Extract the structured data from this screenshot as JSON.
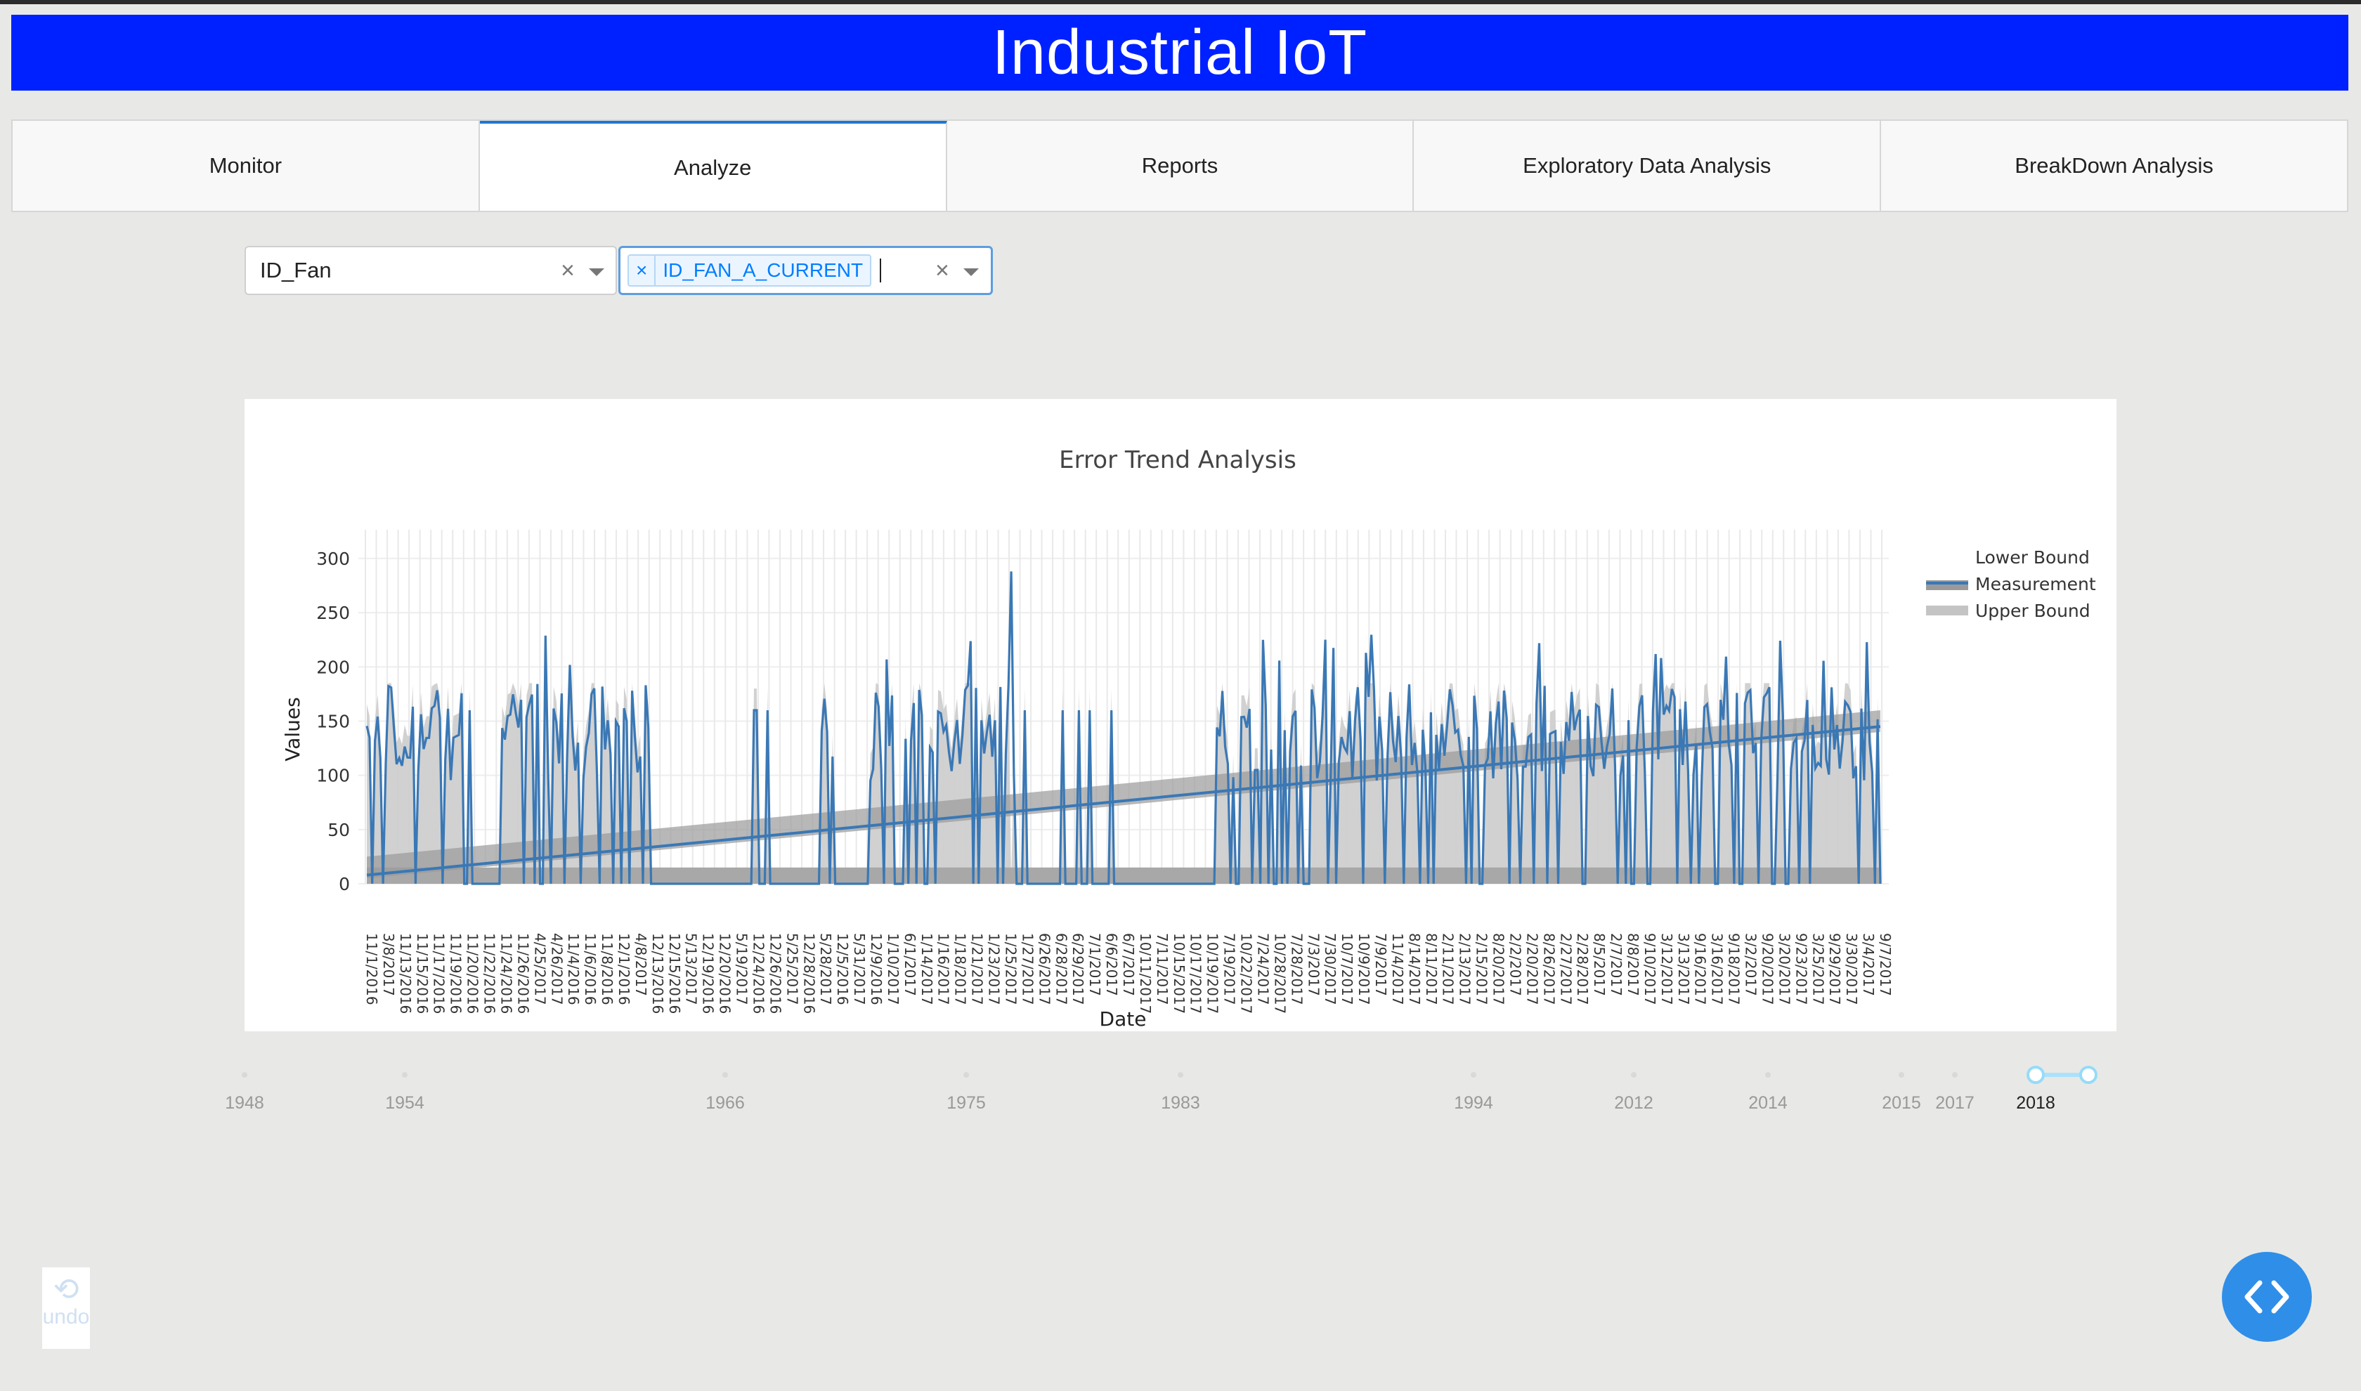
{
  "header": {
    "title": "Industrial IoT"
  },
  "tabs": [
    {
      "label": "Monitor",
      "active": false
    },
    {
      "label": "Analyze",
      "active": true
    },
    {
      "label": "Reports",
      "active": false
    },
    {
      "label": "Exploratory Data Analysis",
      "active": false
    },
    {
      "label": "BreakDown Analysis",
      "active": false
    }
  ],
  "filters": {
    "equipment": {
      "value": "ID_Fan",
      "clear_glyph": "×"
    },
    "sensor": {
      "tag_remove": "×",
      "tag_label": "ID_FAN_A_CURRENT",
      "clear_glyph": "×"
    }
  },
  "chart_data": {
    "type": "line",
    "title": "Error Trend Analysis",
    "xlabel": "Date",
    "ylabel": "Values",
    "ylim": [
      0,
      320
    ],
    "yticks": [
      0,
      50,
      100,
      150,
      200,
      250,
      300
    ],
    "categories": [
      "11/1/2016",
      "3/8/2017",
      "11/13/2016",
      "11/15/2016",
      "11/17/2016",
      "11/19/2016",
      "11/20/2016",
      "11/22/2016",
      "11/24/2016",
      "11/26/2016",
      "4/25/2017",
      "4/26/2017",
      "11/4/2016",
      "11/6/2016",
      "11/8/2016",
      "12/1/2016",
      "4/8/2017",
      "12/13/2016",
      "12/15/2016",
      "5/13/2017",
      "12/19/2016",
      "12/20/2016",
      "5/19/2017",
      "12/24/2016",
      "12/26/2016",
      "5/25/2017",
      "12/28/2016",
      "5/28/2017",
      "12/5/2016",
      "5/31/2017",
      "12/9/2016",
      "1/10/2017",
      "6/1/2017",
      "1/14/2017",
      "1/16/2017",
      "1/18/2017",
      "1/21/2017",
      "1/23/2017",
      "1/25/2017",
      "1/27/2017",
      "6/26/2017",
      "6/28/2017",
      "6/29/2017",
      "7/1/2017",
      "6/6/2017",
      "6/7/2017",
      "10/11/2017",
      "7/11/2017",
      "10/15/2017",
      "10/17/2017",
      "10/19/2017",
      "7/19/2017",
      "10/22/2017",
      "7/24/2017",
      "10/28/2017",
      "7/28/2017",
      "7/3/2017",
      "7/30/2017",
      "10/7/2017",
      "10/9/2017",
      "7/9/2017",
      "11/4/2017",
      "8/14/2017",
      "8/11/2017",
      "2/11/2017",
      "2/13/2017",
      "2/15/2017",
      "8/20/2017",
      "2/2/2017",
      "2/20/2017",
      "8/26/2017",
      "2/27/2017",
      "2/28/2017",
      "8/5/2017",
      "2/7/2017",
      "8/8/2017",
      "9/10/2017",
      "3/12/2017",
      "3/13/2017",
      "9/16/2017",
      "3/16/2017",
      "9/18/2017",
      "3/2/2017",
      "9/20/2017",
      "3/20/2017",
      "9/23/2017",
      "3/25/2017",
      "9/29/2017",
      "3/30/2017",
      "3/4/2017",
      "9/7/2017"
    ],
    "series": [
      {
        "name": "Lower Bound",
        "color": "#7f7f7f"
      },
      {
        "name": "Measurement",
        "color": "#3a78b5"
      },
      {
        "name": "Upper Bound",
        "color": "#c4c4c4"
      }
    ],
    "legend_position": "top-right",
    "grid": true
  },
  "slider": {
    "marks": [
      "1948",
      "1954",
      "1966",
      "1975",
      "1983",
      "1994",
      "2012",
      "2014",
      "2015",
      "2017",
      "2018"
    ],
    "selected": [
      "2018",
      "2018"
    ]
  },
  "undo": {
    "label": "undo",
    "icon": "undo-icon"
  },
  "fab": {
    "icon": "code-icon"
  }
}
